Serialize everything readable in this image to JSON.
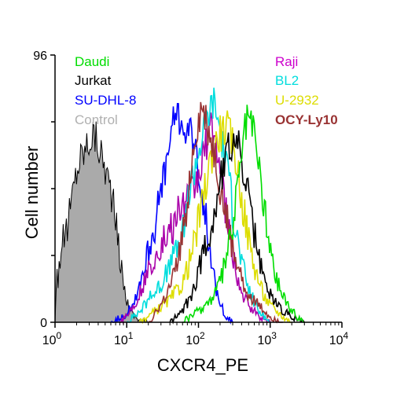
{
  "chart_data": {
    "type": "histogram-overlay",
    "xlabel": "CXCR4_PE",
    "ylabel": "Cell number",
    "x_scale": "log",
    "xlim": [
      1,
      10000
    ],
    "ylim": [
      0,
      96
    ],
    "x_ticks": [
      {
        "value": 1,
        "base": "10",
        "exp": "0"
      },
      {
        "value": 10,
        "base": "10",
        "exp": "1"
      },
      {
        "value": 100,
        "base": "10",
        "exp": "2"
      },
      {
        "value": 1000,
        "base": "10",
        "exp": "3"
      },
      {
        "value": 10000,
        "base": "10",
        "exp": "4"
      }
    ],
    "y_tick_labels": [
      {
        "value": 0,
        "label": "0"
      },
      {
        "value": 96,
        "label": "96"
      }
    ],
    "y_minor_ticks": [
      24,
      48,
      72
    ],
    "grid": false,
    "legend_left": [
      "Daudi",
      "Jurkat",
      "SU-DHL-8",
      "Control"
    ],
    "legend_right": [
      "Raji",
      "BL2",
      "U-2932",
      "OCY-Ly10"
    ],
    "series": [
      {
        "name": "Control",
        "color": "#aaaaaa",
        "line": "#000000",
        "filled": true,
        "points": [
          [
            1,
            0
          ],
          [
            1.05,
            20
          ],
          [
            1.1,
            15
          ],
          [
            1.2,
            26
          ],
          [
            1.5,
            35
          ],
          [
            1.8,
            48
          ],
          [
            2,
            55
          ],
          [
            2.3,
            60
          ],
          [
            2.7,
            63
          ],
          [
            3,
            66
          ],
          [
            3.5,
            68
          ],
          [
            4,
            64
          ],
          [
            4.5,
            60
          ],
          [
            5,
            56
          ],
          [
            6,
            48
          ],
          [
            7,
            36
          ],
          [
            8,
            24
          ],
          [
            9,
            14
          ],
          [
            10,
            8
          ],
          [
            12,
            3
          ],
          [
            15,
            1
          ],
          [
            20,
            0
          ]
        ]
      },
      {
        "name": "SU-DHL-8",
        "color": "#0000ff",
        "points": [
          [
            6,
            0
          ],
          [
            10,
            3
          ],
          [
            12,
            6
          ],
          [
            15,
            14
          ],
          [
            20,
            26
          ],
          [
            25,
            36
          ],
          [
            30,
            46
          ],
          [
            35,
            56
          ],
          [
            40,
            64
          ],
          [
            45,
            72
          ],
          [
            50,
            76
          ],
          [
            55,
            74
          ],
          [
            60,
            70
          ],
          [
            70,
            68
          ],
          [
            80,
            66
          ],
          [
            90,
            62
          ],
          [
            100,
            56
          ],
          [
            110,
            50
          ],
          [
            120,
            40
          ],
          [
            140,
            30
          ],
          [
            160,
            18
          ],
          [
            180,
            10
          ],
          [
            200,
            6
          ],
          [
            250,
            2
          ],
          [
            300,
            0
          ]
        ]
      },
      {
        "name": "Raji",
        "color": "#aa00aa",
        "points": [
          [
            8,
            0
          ],
          [
            12,
            5
          ],
          [
            15,
            10
          ],
          [
            20,
            18
          ],
          [
            25,
            24
          ],
          [
            30,
            28
          ],
          [
            40,
            32
          ],
          [
            50,
            38
          ],
          [
            60,
            42
          ],
          [
            70,
            44
          ],
          [
            80,
            46
          ],
          [
            100,
            52
          ],
          [
            120,
            62
          ],
          [
            140,
            68
          ],
          [
            160,
            70
          ],
          [
            180,
            64
          ],
          [
            200,
            54
          ],
          [
            250,
            36
          ],
          [
            300,
            24
          ],
          [
            400,
            10
          ],
          [
            500,
            6
          ],
          [
            700,
            2
          ],
          [
            1000,
            0
          ]
        ]
      },
      {
        "name": "BL2",
        "color": "#00dddd",
        "points": [
          [
            10,
            0
          ],
          [
            15,
            4
          ],
          [
            20,
            8
          ],
          [
            30,
            14
          ],
          [
            40,
            20
          ],
          [
            50,
            26
          ],
          [
            60,
            32
          ],
          [
            70,
            40
          ],
          [
            80,
            52
          ],
          [
            100,
            62
          ],
          [
            120,
            70
          ],
          [
            140,
            76
          ],
          [
            160,
            80
          ],
          [
            180,
            76
          ],
          [
            200,
            70
          ],
          [
            250,
            56
          ],
          [
            300,
            40
          ],
          [
            400,
            22
          ],
          [
            500,
            12
          ],
          [
            700,
            4
          ],
          [
            1000,
            0
          ]
        ]
      },
      {
        "name": "U-2932",
        "color": "#dddd00",
        "points": [
          [
            15,
            0
          ],
          [
            25,
            4
          ],
          [
            40,
            8
          ],
          [
            60,
            14
          ],
          [
            80,
            24
          ],
          [
            100,
            36
          ],
          [
            120,
            46
          ],
          [
            140,
            56
          ],
          [
            160,
            62
          ],
          [
            200,
            68
          ],
          [
            250,
            70
          ],
          [
            300,
            64
          ],
          [
            350,
            56
          ],
          [
            400,
            44
          ],
          [
            500,
            30
          ],
          [
            600,
            20
          ],
          [
            800,
            10
          ],
          [
            1000,
            6
          ],
          [
            1500,
            2
          ],
          [
            2000,
            0
          ]
        ]
      },
      {
        "name": "OCY-Ly10",
        "color": "#993333",
        "points": [
          [
            20,
            0
          ],
          [
            30,
            6
          ],
          [
            40,
            12
          ],
          [
            50,
            20
          ],
          [
            60,
            30
          ],
          [
            70,
            44
          ],
          [
            80,
            56
          ],
          [
            90,
            66
          ],
          [
            100,
            72
          ],
          [
            110,
            76
          ],
          [
            120,
            74
          ],
          [
            140,
            68
          ],
          [
            160,
            62
          ],
          [
            180,
            56
          ],
          [
            200,
            48
          ],
          [
            250,
            36
          ],
          [
            300,
            26
          ],
          [
            400,
            16
          ],
          [
            500,
            10
          ],
          [
            700,
            6
          ],
          [
            1000,
            2
          ],
          [
            1500,
            0
          ]
        ]
      },
      {
        "name": "Jurkat",
        "color": "#000000",
        "points": [
          [
            40,
            0
          ],
          [
            60,
            4
          ],
          [
            80,
            10
          ],
          [
            100,
            18
          ],
          [
            120,
            26
          ],
          [
            140,
            32
          ],
          [
            160,
            36
          ],
          [
            180,
            44
          ],
          [
            200,
            52
          ],
          [
            250,
            60
          ],
          [
            300,
            66
          ],
          [
            350,
            64
          ],
          [
            400,
            58
          ],
          [
            500,
            44
          ],
          [
            600,
            32
          ],
          [
            700,
            22
          ],
          [
            800,
            16
          ],
          [
            1000,
            10
          ],
          [
            1500,
            4
          ],
          [
            2000,
            2
          ],
          [
            3000,
            0
          ]
        ]
      },
      {
        "name": "Daudi",
        "color": "#00dd00",
        "points": [
          [
            60,
            0
          ],
          [
            100,
            4
          ],
          [
            150,
            8
          ],
          [
            200,
            14
          ],
          [
            250,
            24
          ],
          [
            300,
            34
          ],
          [
            350,
            48
          ],
          [
            400,
            60
          ],
          [
            450,
            70
          ],
          [
            500,
            74
          ],
          [
            550,
            72
          ],
          [
            600,
            66
          ],
          [
            700,
            56
          ],
          [
            800,
            44
          ],
          [
            900,
            34
          ],
          [
            1000,
            26
          ],
          [
            1200,
            16
          ],
          [
            1500,
            10
          ],
          [
            2000,
            4
          ],
          [
            3000,
            0
          ]
        ]
      }
    ]
  }
}
